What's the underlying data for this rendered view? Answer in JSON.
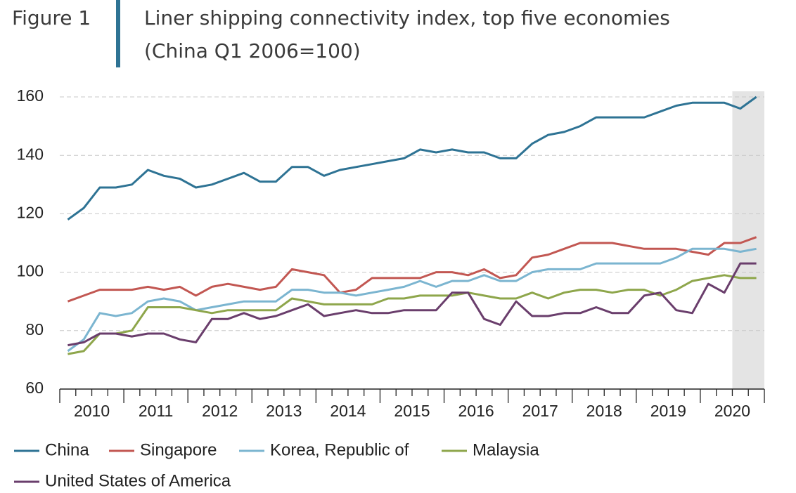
{
  "chart_data": {
    "type": "line",
    "figure_label": "Figure 1",
    "title": "Liner shipping connectivity index, top five economies",
    "subtitle": "(China Q1 2006=100)",
    "x_labels": [
      "2010",
      "2011",
      "2012",
      "2013",
      "2014",
      "2015",
      "2016",
      "2017",
      "2018",
      "2019",
      "2020"
    ],
    "quarters_per_label": 4,
    "ylim": [
      60,
      160
    ],
    "yticks": [
      60,
      80,
      100,
      120,
      140,
      160
    ],
    "grid": true,
    "series": [
      {
        "name": "China",
        "color": "#2e7394",
        "values": [
          118,
          122,
          129,
          129,
          130,
          135,
          133,
          132,
          129,
          130,
          132,
          134,
          131,
          131,
          136,
          136,
          133,
          135,
          136,
          137,
          138,
          139,
          142,
          141,
          142,
          141,
          141,
          139,
          139,
          144,
          147,
          148,
          150,
          153,
          153,
          153,
          153,
          155,
          157,
          158,
          158,
          158,
          156,
          160
        ]
      },
      {
        "name": "Singapore",
        "color": "#c25752",
        "values": [
          90,
          92,
          94,
          94,
          94,
          95,
          94,
          95,
          92,
          95,
          96,
          95,
          94,
          95,
          101,
          100,
          99,
          93,
          94,
          98,
          98,
          98,
          98,
          100,
          100,
          99,
          101,
          98,
          99,
          105,
          106,
          108,
          110,
          110,
          110,
          109,
          108,
          108,
          108,
          107,
          106,
          110,
          110,
          112
        ]
      },
      {
        "name": "Korea, Republic of",
        "color": "#7bb5d0",
        "values": [
          73,
          77,
          86,
          85,
          86,
          90,
          91,
          90,
          87,
          88,
          89,
          90,
          90,
          90,
          94,
          94,
          93,
          93,
          92,
          93,
          94,
          95,
          97,
          95,
          97,
          97,
          99,
          97,
          97,
          100,
          101,
          101,
          101,
          103,
          103,
          103,
          103,
          103,
          105,
          108,
          108,
          108,
          107,
          108
        ]
      },
      {
        "name": "Malaysia",
        "color": "#8ea64b",
        "values": [
          72,
          73,
          79,
          79,
          80,
          88,
          88,
          88,
          87,
          86,
          87,
          87,
          87,
          87,
          91,
          90,
          89,
          89,
          89,
          89,
          91,
          91,
          92,
          92,
          92,
          93,
          92,
          91,
          91,
          93,
          91,
          93,
          94,
          94,
          93,
          94,
          94,
          92,
          94,
          97,
          98,
          99,
          98,
          98
        ]
      },
      {
        "name": "United States of America",
        "color": "#6a3e6c",
        "values": [
          75,
          76,
          79,
          79,
          78,
          79,
          79,
          77,
          76,
          84,
          84,
          86,
          84,
          85,
          87,
          89,
          85,
          86,
          87,
          86,
          86,
          87,
          87,
          87,
          93,
          93,
          84,
          82,
          90,
          85,
          85,
          86,
          86,
          88,
          86,
          86,
          92,
          93,
          87,
          86,
          96,
          93,
          103,
          103
        ]
      }
    ]
  }
}
